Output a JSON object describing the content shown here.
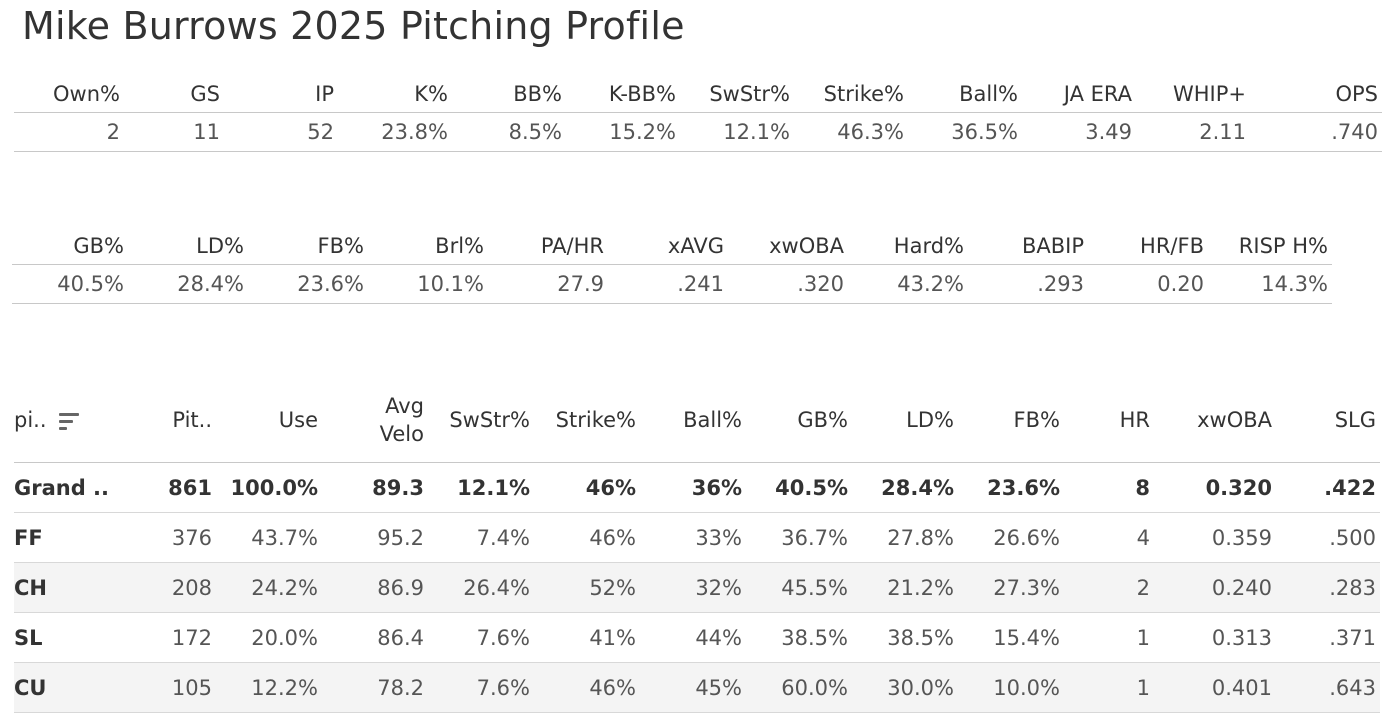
{
  "title": "Mike Burrows 2025 Pitching Profile",
  "summary": {
    "headers": [
      "Own%",
      "GS",
      "IP",
      "K%",
      "BB%",
      "K-BB%",
      "SwStr%",
      "Strike%",
      "Ball%",
      "JA ERA",
      "WHIP+",
      "OPS"
    ],
    "values": [
      "2",
      "11",
      "52",
      "23.8%",
      "8.5%",
      "15.2%",
      "12.1%",
      "46.3%",
      "36.5%",
      "3.49",
      "2.11",
      ".740"
    ]
  },
  "batted_ball": {
    "headers": [
      "GB%",
      "LD%",
      "FB%",
      "Brl%",
      "PA/HR",
      "xAVG",
      "xwOBA",
      "Hard%",
      "BABIP",
      "HR/FB",
      "RISP H%"
    ],
    "values": [
      "40.5%",
      "28.4%",
      "23.6%",
      "10.1%",
      "27.9",
      ".241",
      ".320",
      "43.2%",
      ".293",
      "0.20",
      "14.3%"
    ]
  },
  "pitch_table": {
    "headers": [
      "pi..",
      "Pit..",
      "Use",
      "Avg Velo",
      "SwStr%",
      "Strike%",
      "Ball%",
      "GB%",
      "LD%",
      "FB%",
      "HR",
      "xwOBA",
      "SLG"
    ],
    "sort_icon": "sort-descending-icon",
    "rows": [
      [
        "Grand ..",
        "861",
        "100.0%",
        "89.3",
        "12.1%",
        "46%",
        "36%",
        "40.5%",
        "28.4%",
        "23.6%",
        "8",
        "0.320",
        ".422"
      ],
      [
        "FF",
        "376",
        "43.7%",
        "95.2",
        "7.4%",
        "46%",
        "33%",
        "36.7%",
        "27.8%",
        "26.6%",
        "4",
        "0.359",
        ".500"
      ],
      [
        "CH",
        "208",
        "24.2%",
        "86.9",
        "26.4%",
        "52%",
        "32%",
        "45.5%",
        "21.2%",
        "27.3%",
        "2",
        "0.240",
        ".283"
      ],
      [
        "SL",
        "172",
        "20.0%",
        "86.4",
        "7.6%",
        "41%",
        "44%",
        "38.5%",
        "38.5%",
        "15.4%",
        "1",
        "0.313",
        ".371"
      ],
      [
        "CU",
        "105",
        "12.2%",
        "78.2",
        "7.6%",
        "46%",
        "45%",
        "60.0%",
        "30.0%",
        "10.0%",
        "1",
        "0.401",
        ".643"
      ]
    ]
  },
  "colors": {
    "text": "#333333",
    "value_text": "#555555",
    "divider": "#c8c8c8",
    "alt_row": "#f4f4f4"
  }
}
